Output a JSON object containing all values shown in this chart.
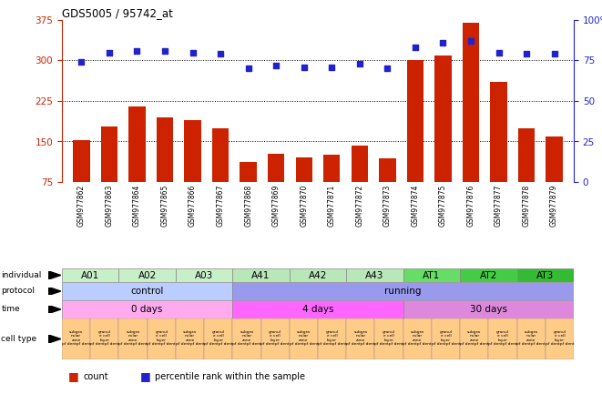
{
  "title": "GDS5005 / 95742_at",
  "samples": [
    "GSM977862",
    "GSM977863",
    "GSM977864",
    "GSM977865",
    "GSM977866",
    "GSM977867",
    "GSM977868",
    "GSM977869",
    "GSM977870",
    "GSM977871",
    "GSM977872",
    "GSM977873",
    "GSM977874",
    "GSM977875",
    "GSM977876",
    "GSM977877",
    "GSM977878",
    "GSM977879"
  ],
  "counts": [
    152,
    178,
    215,
    195,
    190,
    175,
    112,
    128,
    120,
    125,
    143,
    118,
    300,
    310,
    370,
    260,
    175,
    160
  ],
  "percentiles": [
    74,
    80,
    81,
    81,
    80,
    79,
    70,
    72,
    71,
    71,
    73,
    70,
    83,
    86,
    87,
    80,
    79,
    79
  ],
  "ylim_left": [
    75,
    375
  ],
  "ylim_right": [
    0,
    100
  ],
  "yticks_left": [
    75,
    150,
    225,
    300,
    375
  ],
  "yticks_right": [
    0,
    25,
    50,
    75,
    100
  ],
  "bar_color": "#cc2200",
  "dot_color": "#2222cc",
  "grid_color": "#000000",
  "ind_groups": [
    {
      "label": "A01",
      "start": 0,
      "end": 2,
      "color": "#c8f0c8"
    },
    {
      "label": "A02",
      "start": 2,
      "end": 4,
      "color": "#c8f0c8"
    },
    {
      "label": "A03",
      "start": 4,
      "end": 6,
      "color": "#c8f0c8"
    },
    {
      "label": "A41",
      "start": 6,
      "end": 8,
      "color": "#b8e8b8"
    },
    {
      "label": "A42",
      "start": 8,
      "end": 10,
      "color": "#b8e8b8"
    },
    {
      "label": "A43",
      "start": 10,
      "end": 12,
      "color": "#b8e8b8"
    },
    {
      "label": "AT1",
      "start": 12,
      "end": 14,
      "color": "#66dd66"
    },
    {
      "label": "AT2",
      "start": 14,
      "end": 16,
      "color": "#44cc44"
    },
    {
      "label": "AT3",
      "start": 16,
      "end": 18,
      "color": "#33bb33"
    }
  ],
  "prot_groups": [
    {
      "label": "control",
      "start": 0,
      "end": 6,
      "color": "#bbccff"
    },
    {
      "label": "running",
      "start": 6,
      "end": 18,
      "color": "#9999ee"
    }
  ],
  "time_groups": [
    {
      "label": "0 days",
      "start": 0,
      "end": 6,
      "color": "#ffaaee"
    },
    {
      "label": "4 days",
      "start": 6,
      "end": 12,
      "color": "#ff66ff"
    },
    {
      "label": "30 days",
      "start": 12,
      "end": 18,
      "color": "#dd88dd"
    }
  ],
  "cell_type_color": "#ffcc88",
  "bg_color": "#ffffff",
  "xtick_bg": "#d4d4d4",
  "tick_label_color_left": "#cc2200",
  "tick_label_color_right": "#2222cc",
  "row_label_color": "#000000"
}
